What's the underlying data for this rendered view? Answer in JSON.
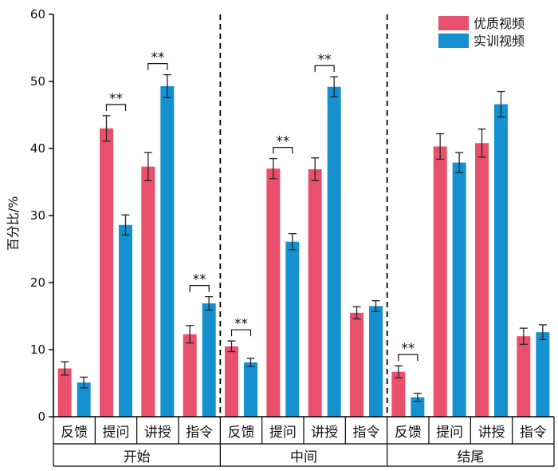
{
  "chart_data": {
    "type": "bar",
    "ylabel": "百分比/%",
    "ylim": [
      0,
      60
    ],
    "yticks": [
      0,
      10,
      20,
      30,
      40,
      50,
      60
    ],
    "legend_position": "top-right",
    "groups": [
      {
        "name": "开始",
        "categories": [
          "反馈",
          "提问",
          "讲授",
          "指令"
        ]
      },
      {
        "name": "中间",
        "categories": [
          "反馈",
          "提问",
          "讲授",
          "指令"
        ]
      },
      {
        "name": "结尾",
        "categories": [
          "反馈",
          "提问",
          "讲授",
          "指令"
        ]
      }
    ],
    "series": [
      {
        "name": "优质视频",
        "color": "#e8506c",
        "values": [
          7.2,
          43.0,
          37.3,
          12.3,
          10.5,
          37.0,
          36.9,
          15.5,
          6.7,
          40.3,
          40.8,
          12.0
        ],
        "errors": [
          1.0,
          1.9,
          2.1,
          1.3,
          0.8,
          1.5,
          1.7,
          0.9,
          0.9,
          1.9,
          2.1,
          1.2
        ]
      },
      {
        "name": "实训视频",
        "color": "#1591cf",
        "values": [
          5.1,
          28.6,
          49.3,
          16.9,
          8.1,
          26.1,
          49.2,
          16.5,
          2.9,
          37.9,
          46.6,
          12.6
        ],
        "errors": [
          0.8,
          1.5,
          1.7,
          1.0,
          0.6,
          1.2,
          1.5,
          0.8,
          0.6,
          1.5,
          1.9,
          1.1
        ]
      }
    ],
    "significance": [
      {
        "group": 0,
        "category": 1,
        "label": "**"
      },
      {
        "group": 0,
        "category": 2,
        "label": "**"
      },
      {
        "group": 0,
        "category": 3,
        "label": "**"
      },
      {
        "group": 1,
        "category": 0,
        "label": "**"
      },
      {
        "group": 1,
        "category": 1,
        "label": "**"
      },
      {
        "group": 1,
        "category": 2,
        "label": "**"
      },
      {
        "group": 2,
        "category": 0,
        "label": "**"
      }
    ],
    "grid": false
  }
}
